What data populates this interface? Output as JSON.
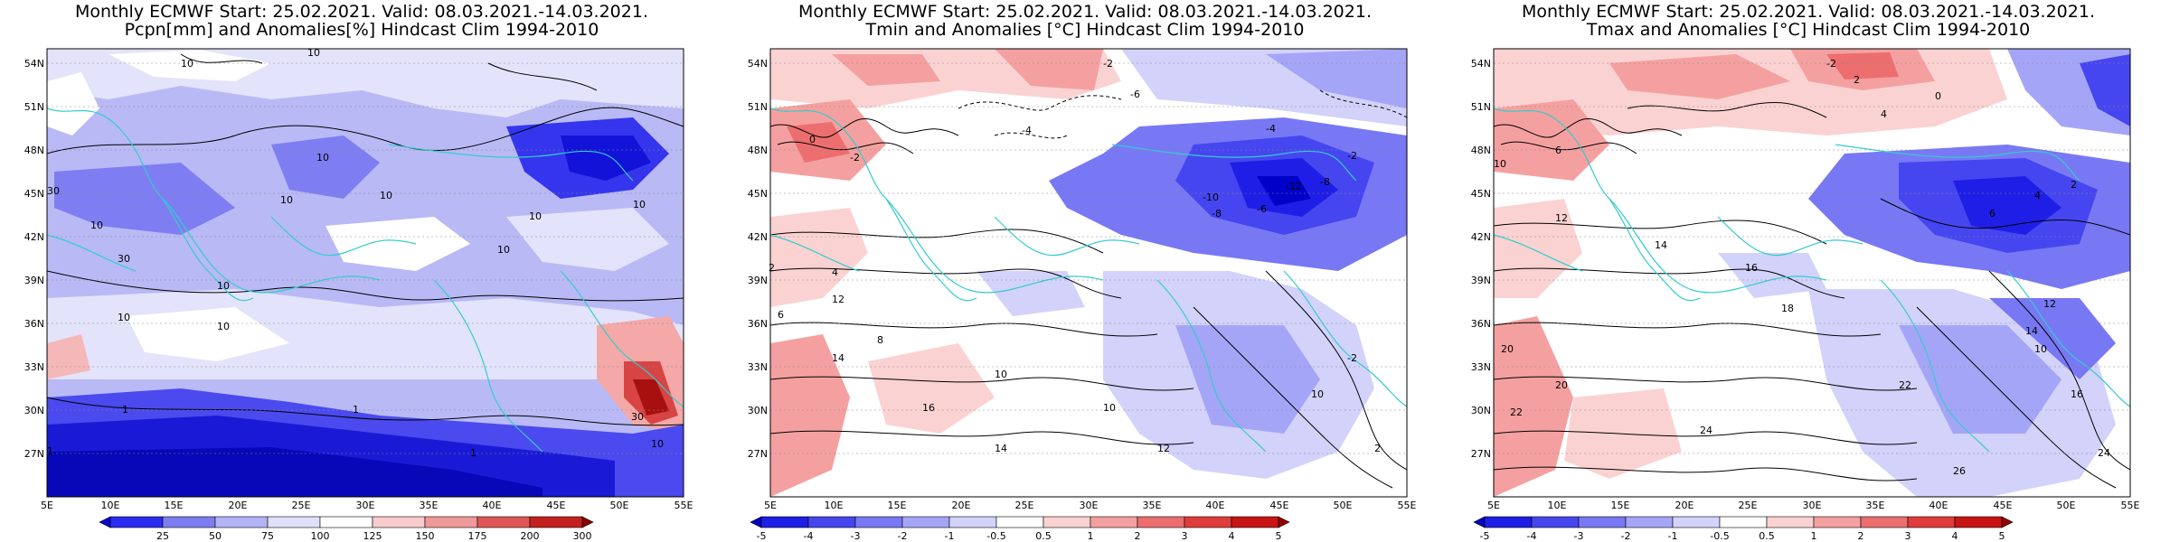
{
  "panels": [
    {
      "title_line1": "Monthly ECMWF Start: 25.02.2021. Valid: 08.03.2021.-14.03.2021.",
      "title_line2": "Pcpn[mm] and Anomalies[%] Hindcast Clim 1994-2010",
      "colorbar": {
        "labels": [
          "25",
          "50",
          "75",
          "100",
          "125",
          "150",
          "175",
          "200",
          "300"
        ],
        "colors": [
          "#0a0ad2",
          "#2b2bf0",
          "#7d7df2",
          "#b3b3f7",
          "#e0e0fb",
          "#ffffff",
          "#f8cccc",
          "#f09999",
          "#e05555",
          "#c42020",
          "#8a0000"
        ]
      },
      "contour_labels": [
        "10",
        "10",
        "30",
        "10",
        "10",
        "10",
        "10",
        "10",
        "10",
        "10",
        "30",
        "10",
        "10",
        "1",
        "1",
        "30",
        "1",
        "10",
        "1",
        "10"
      ]
    },
    {
      "title_line1": "Monthly ECMWF Start: 25.02.2021. Valid: 08.03.2021.-14.03.2021.",
      "title_line2": "Tmin and Anomalies [°C] Hindcast Clim 1994-2010",
      "colorbar": {
        "labels": [
          "-5",
          "-4",
          "-3",
          "-2",
          "-1",
          "-0.5",
          "0.5",
          "1",
          "2",
          "3",
          "4",
          "5"
        ],
        "colors": [
          "#0000c8",
          "#1e1ee6",
          "#4646f0",
          "#7878f5",
          "#a5a5f8",
          "#d2d2fb",
          "#ffffff",
          "#fbd2d2",
          "#f5a0a0",
          "#ec6e6e",
          "#e03c3c",
          "#c81414",
          "#960000"
        ]
      },
      "contour_labels": [
        "-2",
        "-6",
        "-4",
        "0",
        "-2",
        "-4",
        "-10",
        "-8",
        "-6",
        "-12",
        "-8",
        "-2",
        "2",
        "4",
        "6",
        "8",
        "10",
        "12",
        "14",
        "16",
        "10",
        "12",
        "14",
        "10",
        "-2",
        "2"
      ]
    },
    {
      "title_line1": "Monthly ECMWF Start: 25.02.2021. Valid: 08.03.2021.-14.03.2021.",
      "title_line2": "Tmax and Anomalies [°C] Hindcast Clim 1994-2010",
      "colorbar": {
        "labels": [
          "-5",
          "-4",
          "-3",
          "-2",
          "-1",
          "-0.5",
          "0.5",
          "1",
          "2",
          "3",
          "4",
          "5"
        ],
        "colors": [
          "#0000c8",
          "#1e1ee6",
          "#4646f0",
          "#7878f5",
          "#a5a5f8",
          "#d2d2fb",
          "#ffffff",
          "#fbd2d2",
          "#f5a0a0",
          "#ec6e6e",
          "#e03c3c",
          "#c81414",
          "#960000"
        ]
      },
      "contour_labels": [
        "2",
        "-2",
        "0",
        "4",
        "6",
        "10",
        "12",
        "14",
        "16",
        "18",
        "20",
        "22",
        "24",
        "26",
        "10",
        "12",
        "14",
        "16",
        "20",
        "22",
        "24",
        "6",
        "4",
        "2"
      ]
    }
  ],
  "latitudes": [
    "54N",
    "51N",
    "48N",
    "45N",
    "42N",
    "39N",
    "36N",
    "33N",
    "30N",
    "27N"
  ],
  "longitudes": [
    "5E",
    "10E",
    "15E",
    "20E",
    "25E",
    "30E",
    "35E",
    "40E",
    "45E",
    "50E",
    "55E"
  ]
}
